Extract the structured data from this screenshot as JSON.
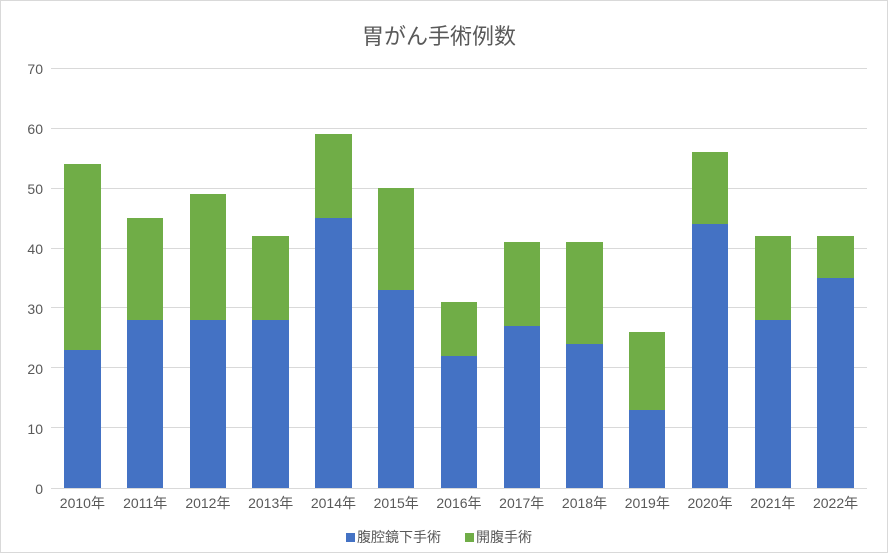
{
  "chart": {
    "type": "stacked-bar",
    "title": "胃がん手術例数",
    "title_fontsize": 22,
    "title_color": "#595959",
    "background_color": "#ffffff",
    "border_color": "#d9d9d9",
    "grid_color": "#d9d9d9",
    "axis_label_color": "#595959",
    "axis_fontsize": 14,
    "ylim": [
      0,
      70
    ],
    "ytick_step": 10,
    "yticks": [
      0,
      10,
      20,
      30,
      40,
      50,
      60,
      70
    ],
    "categories": [
      "2010年",
      "2011年",
      "2012年",
      "2013年",
      "2014年",
      "2015年",
      "2016年",
      "2017年",
      "2018年",
      "2019年",
      "2020年",
      "2021年",
      "2022年"
    ],
    "series": [
      {
        "name": "腹腔鏡下手術",
        "color": "#4472c4",
        "values": [
          23,
          28,
          28,
          28,
          45,
          33,
          22,
          27,
          24,
          13,
          44,
          28,
          35
        ]
      },
      {
        "name": "開腹手術",
        "color": "#70ad47",
        "values": [
          31,
          17,
          21,
          14,
          14,
          17,
          9,
          14,
          17,
          13,
          12,
          14,
          7
        ]
      }
    ],
    "bar_width_ratio": 0.58,
    "legend_position": "bottom"
  }
}
